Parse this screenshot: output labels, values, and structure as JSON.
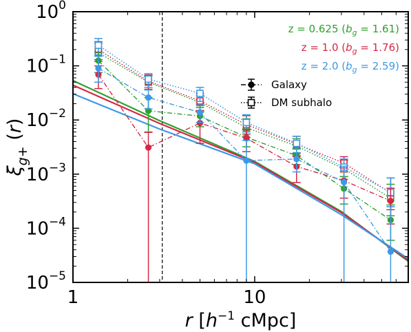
{
  "chart_data": {
    "type": "line",
    "xlabel_html": "<tspan font-style='italic'>r</tspan> [<tspan font-style='italic'>h</tspan><tspan dy='-10' font-size='17'>−1</tspan><tspan dy='10'> cMpc]</tspan>",
    "ylabel_html": "<tspan font-style='italic'>ξ</tspan><tspan dy='9' font-size='19' font-style='italic'>g</tspan><tspan font-size='19'>+</tspan><tspan dy='-9'> (</tspan><tspan font-style='italic'>r</tspan>)",
    "x_scale": "log",
    "y_scale": "log",
    "xlim": [
      1,
      70
    ],
    "ylim": [
      1e-05,
      1
    ],
    "x_ticks": [
      {
        "value": 1,
        "label": "1"
      },
      {
        "value": 10,
        "label": "10"
      }
    ],
    "y_ticks": [
      {
        "value": 1,
        "mant": "10",
        "exp": "0"
      },
      {
        "value": 0.1,
        "mant": "10",
        "exp": "−1"
      },
      {
        "value": 0.01,
        "mant": "10",
        "exp": "−2"
      },
      {
        "value": 0.001,
        "mant": "10",
        "exp": "−3"
      },
      {
        "value": 0.0001,
        "mant": "10",
        "exp": "−4"
      },
      {
        "value": 1e-05,
        "mant": "10",
        "exp": "−5"
      }
    ],
    "vline_x": 3.1,
    "grid": false,
    "legend": [
      {
        "text": "z = 0.625 (b_g = 1.61)",
        "z": "z = 0.625 (",
        "b": "b",
        "sub": "g",
        "rest": " = 1.61)",
        "color": "#2ca02c"
      },
      {
        "text": "z = 1.0 (b_g = 1.76)",
        "z": "z = 1.0 (",
        "b": "b",
        "sub": "g",
        "rest": " = 1.76)",
        "color": "#d62745"
      },
      {
        "text": "z = 2.0 (b_g = 2.59)",
        "z": "z = 2.0 (",
        "b": "b",
        "sub": "g",
        "rest": " = 2.59)",
        "color": "#3c99e6"
      }
    ],
    "style_legend": [
      {
        "label": "Galaxy",
        "style": "galaxy"
      },
      {
        "label": "DM subhalo",
        "style": "dm"
      }
    ],
    "series": [
      {
        "color": "#2ca02c",
        "galaxy": [
          {
            "x": 1.38,
            "y": 0.125,
            "lo": 0.075,
            "hi": 0.18
          },
          {
            "x": 2.6,
            "y": 0.0148,
            "lo": 0.006,
            "hi": 0.026
          },
          {
            "x": 5.0,
            "y": 0.0118,
            "lo": 0.0075,
            "hi": 0.017
          },
          {
            "x": 9.0,
            "y": 0.0048,
            "lo": 0.0032,
            "hi": 0.0068
          },
          {
            "x": 17.0,
            "y": 0.0022,
            "lo": 0.0015,
            "hi": 0.003
          },
          {
            "x": 31.0,
            "y": 0.00054,
            "lo": 0.00028,
            "hi": 0.0009
          },
          {
            "x": 56.0,
            "y": 0.000142,
            "lo": 6e-05,
            "hi": 0.00027
          }
        ],
        "dm": [
          {
            "x": 1.38,
            "y": 0.175,
            "lo": 0.12,
            "hi": 0.26
          },
          {
            "x": 2.6,
            "y": 0.05,
            "lo": 0.036,
            "hi": 0.065
          },
          {
            "x": 5.0,
            "y": 0.021,
            "lo": 0.014,
            "hi": 0.028
          },
          {
            "x": 9.0,
            "y": 0.0072,
            "lo": 0.0048,
            "hi": 0.0105
          },
          {
            "x": 17.0,
            "y": 0.0033,
            "lo": 0.0022,
            "hi": 0.0045
          },
          {
            "x": 31.0,
            "y": 0.00125,
            "lo": 0.0008,
            "hi": 0.0018
          },
          {
            "x": 56.0,
            "y": 0.00036,
            "lo": 0.00017,
            "hi": 0.00065
          }
        ],
        "model": [
          [
            1,
            0.0535
          ],
          [
            3,
            0.0097
          ],
          [
            10,
            0.00172
          ],
          [
            30,
            0.000203
          ],
          [
            70,
            2.45e-05
          ]
        ]
      },
      {
        "color": "#d62745",
        "galaxy": [
          {
            "x": 1.38,
            "y": 0.069,
            "lo": 0.038,
            "hi": 0.1
          },
          {
            "x": 2.6,
            "y": 0.0031,
            "lo": 1e-05,
            "hi": 0.0059
          },
          {
            "x": 5.0,
            "y": 0.0088,
            "lo": 0.0037,
            "hi": 0.0142
          },
          {
            "x": 9.0,
            "y": 0.0046,
            "lo": 0.0026,
            "hi": 0.0066
          },
          {
            "x": 17.0,
            "y": 0.00138,
            "lo": 0.0007,
            "hi": 0.0021
          },
          {
            "x": 31.0,
            "y": 0.00076,
            "lo": 0.00036,
            "hi": 0.0013
          },
          {
            "x": 56.0,
            "y": 0.00032,
            "lo": 0.00012,
            "hi": 0.00055
          }
        ],
        "dm": [
          {
            "x": 1.38,
            "y": 0.2,
            "lo": 0.13,
            "hi": 0.28
          },
          {
            "x": 2.6,
            "y": 0.052,
            "lo": 0.037,
            "hi": 0.068
          },
          {
            "x": 5.0,
            "y": 0.0225,
            "lo": 0.015,
            "hi": 0.031
          },
          {
            "x": 9.0,
            "y": 0.0082,
            "lo": 0.0055,
            "hi": 0.012
          },
          {
            "x": 17.0,
            "y": 0.0036,
            "lo": 0.0024,
            "hi": 0.005
          },
          {
            "x": 31.0,
            "y": 0.0016,
            "lo": 0.0011,
            "hi": 0.0021
          },
          {
            "x": 56.0,
            "y": 0.00045,
            "lo": 0.00022,
            "hi": 0.00085
          }
        ],
        "model": [
          [
            1,
            0.044
          ],
          [
            3,
            0.0086
          ],
          [
            10,
            0.00165
          ],
          [
            30,
            0.000195
          ],
          [
            70,
            2.55e-05
          ]
        ]
      },
      {
        "color": "#3c99e6",
        "galaxy": [
          {
            "x": 1.38,
            "y": 0.09,
            "lo": 0.05,
            "hi": 0.15
          },
          {
            "x": 2.6,
            "y": 0.026,
            "lo": 0.016,
            "hi": 0.036
          },
          {
            "x": 5.0,
            "y": 0.0138,
            "lo": 0.009,
            "hi": 0.019
          },
          {
            "x": 9.0,
            "y": 0.00178,
            "lo": 1e-05,
            "hi": 0.0042
          },
          {
            "x": 17.0,
            "y": 0.0019,
            "lo": 0.0011,
            "hi": 0.0029
          },
          {
            "x": 31.0,
            "y": 0.00071,
            "lo": 1e-05,
            "hi": 0.0014
          },
          {
            "x": 56.0,
            "y": 3.7e-05,
            "lo": 1e-05,
            "hi": 0.00025
          }
        ],
        "dm": [
          {
            "x": 1.38,
            "y": 0.24,
            "lo": 0.16,
            "hi": 0.32
          },
          {
            "x": 2.6,
            "y": 0.057,
            "lo": 0.04,
            "hi": 0.072
          },
          {
            "x": 5.0,
            "y": 0.031,
            "lo": 0.022,
            "hi": 0.04
          },
          {
            "x": 9.0,
            "y": 0.009,
            "lo": 0.006,
            "hi": 0.0125
          },
          {
            "x": 17.0,
            "y": 0.0037,
            "lo": 0.0025,
            "hi": 0.005
          },
          {
            "x": 31.0,
            "y": 0.00135,
            "lo": 0.0009,
            "hi": 0.0019
          },
          {
            "x": 56.0,
            "y": 0.00046,
            "lo": 0.00025,
            "hi": 0.00085
          }
        ],
        "model": [
          [
            1,
            0.0305
          ],
          [
            3,
            0.0068
          ],
          [
            10,
            0.00155
          ],
          [
            30,
            0.000178
          ],
          [
            70,
            2.75e-05
          ]
        ]
      }
    ]
  }
}
